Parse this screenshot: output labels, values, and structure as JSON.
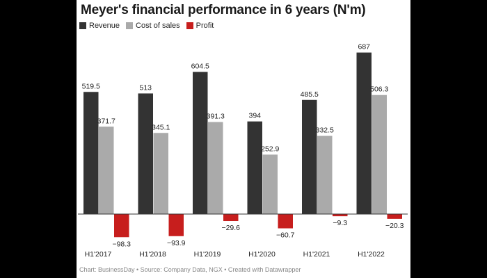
{
  "chart_data": {
    "type": "bar",
    "title": "Meyer's financial performance in 6 years (N'm)",
    "categories": [
      "H1'2017",
      "H1'2018",
      "H1'2019",
      "H1'2020",
      "H1'2021",
      "H1'2022"
    ],
    "series": [
      {
        "name": "Revenue",
        "color": "#333333",
        "values": [
          519.5,
          513,
          604.5,
          394,
          485.5,
          687
        ],
        "labels": [
          "519.5",
          "513",
          "604.5",
          "394",
          "485.5",
          "687"
        ]
      },
      {
        "name": "Cost of sales",
        "color": "#aaaaaa",
        "values": [
          371.7,
          345.1,
          391.3,
          252.9,
          332.5,
          506.3
        ],
        "labels": [
          "371.7",
          "345.1",
          "391.3",
          "252.9",
          "332.5",
          "506.3"
        ]
      },
      {
        "name": "Profit",
        "color": "#c71e1d",
        "values": [
          -98.3,
          -93.9,
          -29.6,
          -60.7,
          -9.3,
          -20.3
        ],
        "labels": [
          "−98.3",
          "−93.9",
          "−29.6",
          "−60.7",
          "−9.3",
          "−20.3"
        ]
      }
    ],
    "ylim": [
      -110,
      700
    ],
    "xlabel": "",
    "ylabel": "",
    "grid": false,
    "legend": "top-left"
  },
  "footer": "Chart: BusinessDay • Source: Company Data, NGX • Created with Datawrapper"
}
